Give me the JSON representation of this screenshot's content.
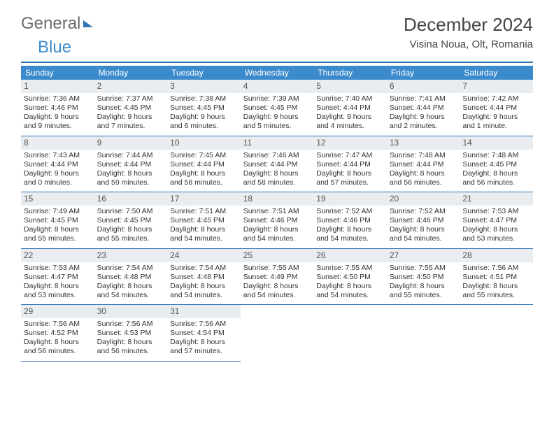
{
  "brand": {
    "part1": "General",
    "part2": "Blue"
  },
  "title": "December 2024",
  "subtitle": "Visina Noua, Olt, Romania",
  "colors": {
    "header_bar": "#3b8bcc",
    "rule": "#2f74b5",
    "daynum_bg": "#e9edf0",
    "text": "#333333",
    "title_text": "#444444"
  },
  "weekdays": [
    "Sunday",
    "Monday",
    "Tuesday",
    "Wednesday",
    "Thursday",
    "Friday",
    "Saturday"
  ],
  "weeks": [
    [
      {
        "n": "1",
        "sr": "Sunrise: 7:36 AM",
        "ss": "Sunset: 4:46 PM",
        "d1": "Daylight: 9 hours",
        "d2": "and 9 minutes."
      },
      {
        "n": "2",
        "sr": "Sunrise: 7:37 AM",
        "ss": "Sunset: 4:45 PM",
        "d1": "Daylight: 9 hours",
        "d2": "and 7 minutes."
      },
      {
        "n": "3",
        "sr": "Sunrise: 7:38 AM",
        "ss": "Sunset: 4:45 PM",
        "d1": "Daylight: 9 hours",
        "d2": "and 6 minutes."
      },
      {
        "n": "4",
        "sr": "Sunrise: 7:39 AM",
        "ss": "Sunset: 4:45 PM",
        "d1": "Daylight: 9 hours",
        "d2": "and 5 minutes."
      },
      {
        "n": "5",
        "sr": "Sunrise: 7:40 AM",
        "ss": "Sunset: 4:44 PM",
        "d1": "Daylight: 9 hours",
        "d2": "and 4 minutes."
      },
      {
        "n": "6",
        "sr": "Sunrise: 7:41 AM",
        "ss": "Sunset: 4:44 PM",
        "d1": "Daylight: 9 hours",
        "d2": "and 2 minutes."
      },
      {
        "n": "7",
        "sr": "Sunrise: 7:42 AM",
        "ss": "Sunset: 4:44 PM",
        "d1": "Daylight: 9 hours",
        "d2": "and 1 minute."
      }
    ],
    [
      {
        "n": "8",
        "sr": "Sunrise: 7:43 AM",
        "ss": "Sunset: 4:44 PM",
        "d1": "Daylight: 9 hours",
        "d2": "and 0 minutes."
      },
      {
        "n": "9",
        "sr": "Sunrise: 7:44 AM",
        "ss": "Sunset: 4:44 PM",
        "d1": "Daylight: 8 hours",
        "d2": "and 59 minutes."
      },
      {
        "n": "10",
        "sr": "Sunrise: 7:45 AM",
        "ss": "Sunset: 4:44 PM",
        "d1": "Daylight: 8 hours",
        "d2": "and 58 minutes."
      },
      {
        "n": "11",
        "sr": "Sunrise: 7:46 AM",
        "ss": "Sunset: 4:44 PM",
        "d1": "Daylight: 8 hours",
        "d2": "and 58 minutes."
      },
      {
        "n": "12",
        "sr": "Sunrise: 7:47 AM",
        "ss": "Sunset: 4:44 PM",
        "d1": "Daylight: 8 hours",
        "d2": "and 57 minutes."
      },
      {
        "n": "13",
        "sr": "Sunrise: 7:48 AM",
        "ss": "Sunset: 4:44 PM",
        "d1": "Daylight: 8 hours",
        "d2": "and 56 minutes."
      },
      {
        "n": "14",
        "sr": "Sunrise: 7:48 AM",
        "ss": "Sunset: 4:45 PM",
        "d1": "Daylight: 8 hours",
        "d2": "and 56 minutes."
      }
    ],
    [
      {
        "n": "15",
        "sr": "Sunrise: 7:49 AM",
        "ss": "Sunset: 4:45 PM",
        "d1": "Daylight: 8 hours",
        "d2": "and 55 minutes."
      },
      {
        "n": "16",
        "sr": "Sunrise: 7:50 AM",
        "ss": "Sunset: 4:45 PM",
        "d1": "Daylight: 8 hours",
        "d2": "and 55 minutes."
      },
      {
        "n": "17",
        "sr": "Sunrise: 7:51 AM",
        "ss": "Sunset: 4:45 PM",
        "d1": "Daylight: 8 hours",
        "d2": "and 54 minutes."
      },
      {
        "n": "18",
        "sr": "Sunrise: 7:51 AM",
        "ss": "Sunset: 4:46 PM",
        "d1": "Daylight: 8 hours",
        "d2": "and 54 minutes."
      },
      {
        "n": "19",
        "sr": "Sunrise: 7:52 AM",
        "ss": "Sunset: 4:46 PM",
        "d1": "Daylight: 8 hours",
        "d2": "and 54 minutes."
      },
      {
        "n": "20",
        "sr": "Sunrise: 7:52 AM",
        "ss": "Sunset: 4:46 PM",
        "d1": "Daylight: 8 hours",
        "d2": "and 54 minutes."
      },
      {
        "n": "21",
        "sr": "Sunrise: 7:53 AM",
        "ss": "Sunset: 4:47 PM",
        "d1": "Daylight: 8 hours",
        "d2": "and 53 minutes."
      }
    ],
    [
      {
        "n": "22",
        "sr": "Sunrise: 7:53 AM",
        "ss": "Sunset: 4:47 PM",
        "d1": "Daylight: 8 hours",
        "d2": "and 53 minutes."
      },
      {
        "n": "23",
        "sr": "Sunrise: 7:54 AM",
        "ss": "Sunset: 4:48 PM",
        "d1": "Daylight: 8 hours",
        "d2": "and 54 minutes."
      },
      {
        "n": "24",
        "sr": "Sunrise: 7:54 AM",
        "ss": "Sunset: 4:48 PM",
        "d1": "Daylight: 8 hours",
        "d2": "and 54 minutes."
      },
      {
        "n": "25",
        "sr": "Sunrise: 7:55 AM",
        "ss": "Sunset: 4:49 PM",
        "d1": "Daylight: 8 hours",
        "d2": "and 54 minutes."
      },
      {
        "n": "26",
        "sr": "Sunrise: 7:55 AM",
        "ss": "Sunset: 4:50 PM",
        "d1": "Daylight: 8 hours",
        "d2": "and 54 minutes."
      },
      {
        "n": "27",
        "sr": "Sunrise: 7:55 AM",
        "ss": "Sunset: 4:50 PM",
        "d1": "Daylight: 8 hours",
        "d2": "and 55 minutes."
      },
      {
        "n": "28",
        "sr": "Sunrise: 7:56 AM",
        "ss": "Sunset: 4:51 PM",
        "d1": "Daylight: 8 hours",
        "d2": "and 55 minutes."
      }
    ],
    [
      {
        "n": "29",
        "sr": "Sunrise: 7:56 AM",
        "ss": "Sunset: 4:52 PM",
        "d1": "Daylight: 8 hours",
        "d2": "and 56 minutes."
      },
      {
        "n": "30",
        "sr": "Sunrise: 7:56 AM",
        "ss": "Sunset: 4:53 PM",
        "d1": "Daylight: 8 hours",
        "d2": "and 56 minutes."
      },
      {
        "n": "31",
        "sr": "Sunrise: 7:56 AM",
        "ss": "Sunset: 4:54 PM",
        "d1": "Daylight: 8 hours",
        "d2": "and 57 minutes."
      },
      null,
      null,
      null,
      null
    ]
  ]
}
